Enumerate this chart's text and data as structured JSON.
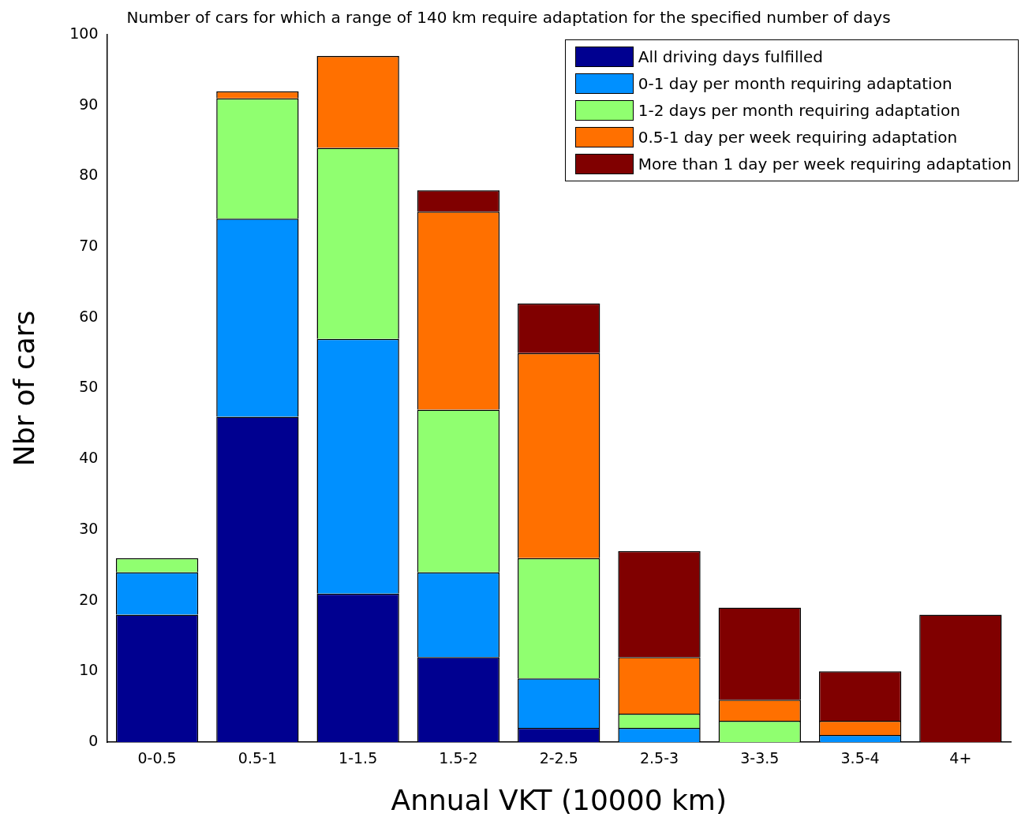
{
  "chart_data": {
    "type": "bar",
    "title": "Number of cars for which a range of 140 km require adaptation for the specified number of days",
    "xlabel": "Annual VKT (10000 km)",
    "ylabel": "Nbr of cars",
    "categories": [
      "0-0.5",
      "0.5-1",
      "1-1.5",
      "1.5-2",
      "2-2.5",
      "2.5-3",
      "3-3.5",
      "3.5-4",
      "4+"
    ],
    "series": [
      {
        "name": "All driving days fulfilled",
        "color": "#000090",
        "values": [
          18,
          46,
          21,
          12,
          2,
          0,
          0,
          0,
          0
        ]
      },
      {
        "name": "0-1 day per month requiring adaptation",
        "color": "#0090ff",
        "values": [
          6,
          28,
          36,
          12,
          7,
          2,
          0,
          1,
          0
        ]
      },
      {
        "name": "1-2 days per month requiring adaptation",
        "color": "#90ff70",
        "values": [
          2,
          17,
          27,
          23,
          17,
          2,
          3,
          0,
          0
        ]
      },
      {
        "name": "0.5-1 day per week requiring adaptation",
        "color": "#ff7000",
        "values": [
          0,
          1,
          13,
          28,
          29,
          8,
          3,
          2,
          0
        ]
      },
      {
        "name": "More than 1 day per week requiring adaptation",
        "color": "#800000",
        "values": [
          0,
          0,
          0,
          3,
          7,
          15,
          13,
          7,
          18
        ]
      }
    ],
    "stacked": true,
    "ylim": [
      0,
      100
    ],
    "yticks": [
      0,
      10,
      20,
      30,
      40,
      50,
      60,
      70,
      80,
      90,
      100
    ],
    "grid": false,
    "legend": "top right"
  }
}
